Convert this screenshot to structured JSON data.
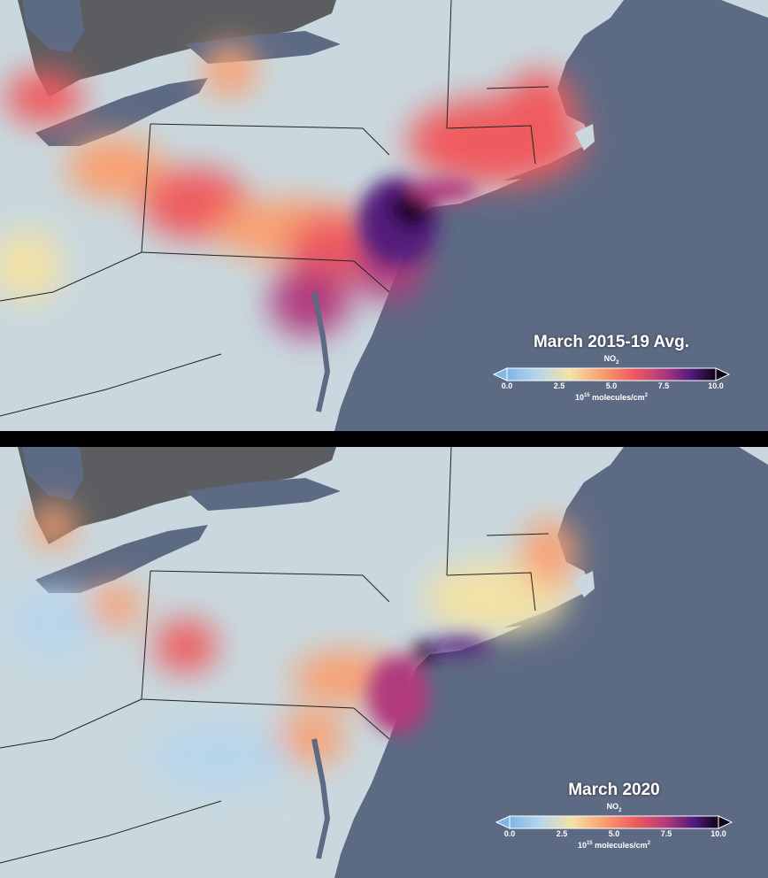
{
  "panels": [
    {
      "title": "March 2015-19 Avg.",
      "variable": "NO",
      "variable_sub": "2",
      "units_base": "10",
      "units_exp": "15",
      "units_rest": " molecules/cm",
      "units_sup": "2",
      "ticks": [
        "0.0",
        "2.5",
        "5.0",
        "7.5",
        "10.0"
      ]
    },
    {
      "title": "March 2020",
      "variable": "NO",
      "variable_sub": "2",
      "units_base": "10",
      "units_exp": "15",
      "units_rest": " molecules/cm",
      "units_sup": "2",
      "ticks": [
        "0.0",
        "2.5",
        "5.0",
        "7.5",
        "10.0"
      ]
    }
  ],
  "colors": {
    "ocean": "#5d6a84",
    "land": "#c8d7df",
    "land_canada": "#5b5d60",
    "scale": [
      "#7fb6e6",
      "#b8d6ea",
      "#f3e2a6",
      "#f9a071",
      "#ef5c5f",
      "#b13a7c",
      "#521b7c",
      "#0d0418"
    ]
  }
}
